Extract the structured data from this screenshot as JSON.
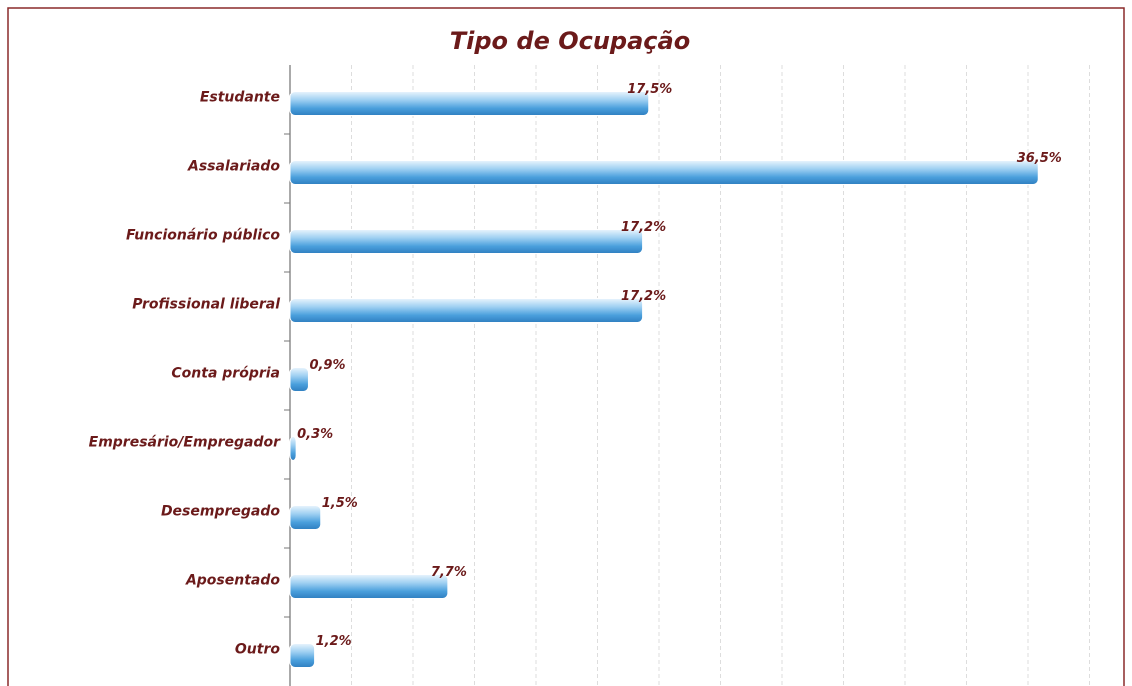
{
  "chart_data": {
    "type": "bar",
    "orientation": "horizontal",
    "title": "Tipo de Ocupação",
    "categories": [
      "Estudante",
      "Assalariado",
      "Funcionário público",
      "Profissional liberal",
      "Conta própria",
      "Empresário/Empregador",
      "Desempregado",
      "Aposentado",
      "Outro"
    ],
    "values": [
      17.5,
      36.5,
      17.2,
      17.2,
      0.9,
      0.3,
      1.5,
      7.7,
      1.2
    ],
    "value_labels": [
      "17,5%",
      "36,5%",
      "17,2%",
      "17,2%",
      "0,9%",
      "0,3%",
      "1,5%",
      "7,7%",
      "1,2%"
    ],
    "color": "#4a9fdc",
    "xlim": [
      0,
      40
    ],
    "xticks": [
      0,
      3,
      6,
      9,
      12,
      15,
      18,
      21,
      24,
      27,
      30,
      33,
      36,
      39
    ],
    "grid": true
  }
}
